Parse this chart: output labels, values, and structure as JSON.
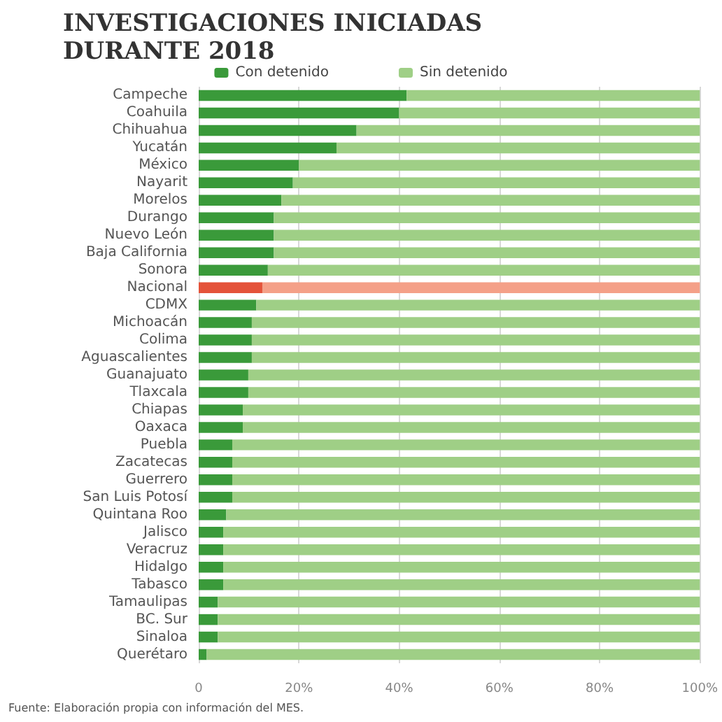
{
  "chart_data": {
    "type": "bar",
    "orientation": "horizontal",
    "stacked": true,
    "title": "INVESTIGACIONES INICIADAS\nDURANTE 2018",
    "categories": [
      "Campeche",
      "Coahuila",
      "Chihuahua",
      "Yucatán",
      "México",
      "Nayarit",
      "Morelos",
      "Durango",
      "Nuevo León",
      "Baja California",
      "Sonora",
      "Nacional",
      "CDMX",
      "Michoacán",
      "Colima",
      "Aguascalientes",
      "Guanajuato",
      "Tlaxcala",
      "Chiapas",
      "Oaxaca",
      "Puebla",
      "Zacatecas",
      "Guerrero",
      "San Luis Potosí",
      "Quintana Roo",
      "Jalisco",
      "Veracruz",
      "Hidalgo",
      "Tabasco",
      "Tamaulipas",
      "BC. Sur",
      "Sinaloa",
      "Querétaro"
    ],
    "series": [
      {
        "name": "Con detenido",
        "color": "#3a9a3a",
        "colors": [
          "#3a9a3a",
          "#3a9a3a",
          "#3a9a3a",
          "#3a9a3a",
          "#3a9a3a",
          "#3a9a3a",
          "#3a9a3a",
          "#3a9a3a",
          "#3a9a3a",
          "#3a9a3a",
          "#3a9a3a",
          "#e4533a",
          "#3a9a3a",
          "#3a9a3a",
          "#3a9a3a",
          "#3a9a3a",
          "#3a9a3a",
          "#3a9a3a",
          "#3a9a3a",
          "#3a9a3a",
          "#3a9a3a",
          "#3a9a3a",
          "#3a9a3a",
          "#3a9a3a",
          "#3a9a3a",
          "#3a9a3a",
          "#3a9a3a",
          "#3a9a3a",
          "#3a9a3a",
          "#3a9a3a",
          "#3a9a3a",
          "#3a9a3a",
          "#3a9a3a"
        ],
        "values": [
          41.5,
          40,
          31.5,
          27.5,
          20,
          18.8,
          16.5,
          15,
          15,
          15,
          13.8,
          12.7,
          11.5,
          10.6,
          10.6,
          10.6,
          9.9,
          9.9,
          8.8,
          8.8,
          6.7,
          6.7,
          6.7,
          6.7,
          5.5,
          4.9,
          4.9,
          4.9,
          4.9,
          3.8,
          3.8,
          3.8,
          1.6
        ]
      },
      {
        "name": "Sin detenido",
        "color": "#9fcf86",
        "colors": [
          "#9fcf86",
          "#9fcf86",
          "#9fcf86",
          "#9fcf86",
          "#9fcf86",
          "#9fcf86",
          "#9fcf86",
          "#9fcf86",
          "#9fcf86",
          "#9fcf86",
          "#9fcf86",
          "#f4a088",
          "#9fcf86",
          "#9fcf86",
          "#9fcf86",
          "#9fcf86",
          "#9fcf86",
          "#9fcf86",
          "#9fcf86",
          "#9fcf86",
          "#9fcf86",
          "#9fcf86",
          "#9fcf86",
          "#9fcf86",
          "#9fcf86",
          "#9fcf86",
          "#9fcf86",
          "#9fcf86",
          "#9fcf86",
          "#9fcf86",
          "#9fcf86",
          "#9fcf86",
          "#9fcf86"
        ],
        "values": [
          58.5,
          60,
          68.5,
          72.5,
          80,
          81.2,
          83.5,
          85,
          85,
          85,
          86.2,
          87.3,
          88.5,
          89.4,
          89.4,
          89.4,
          90.1,
          90.1,
          91.2,
          91.2,
          93.3,
          93.3,
          93.3,
          93.3,
          94.5,
          95.1,
          95.1,
          95.1,
          95.1,
          96.2,
          96.2,
          96.2,
          98.4
        ]
      }
    ],
    "xlim": [
      0,
      100
    ],
    "xticks": [
      0,
      {
        "value": 20,
        "label": "20%"
      },
      {
        "value": 40,
        "label": "40%"
      },
      {
        "value": 60,
        "label": "60%"
      },
      {
        "value": 80,
        "label": "80%"
      },
      {
        "value": 100,
        "label": "100%"
      }
    ],
    "grid": "x",
    "legend": "top",
    "annotations": [
      "Fuente: Elaboración propia con información del MES."
    ]
  }
}
